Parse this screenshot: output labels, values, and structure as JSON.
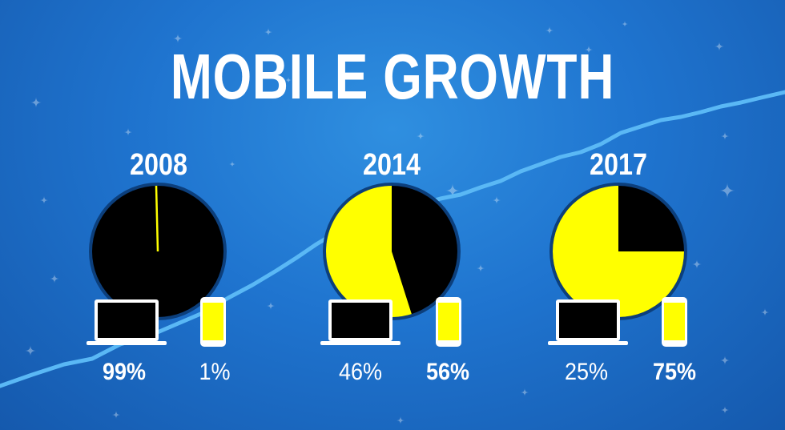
{
  "title": "MOBILE GROWTH",
  "colors": {
    "background": "#1f74cf",
    "trend_line": "#5ab8f5",
    "desktop": "#000000",
    "mobile": "#ffff00",
    "pie_ring": "#0c3f7c"
  },
  "icons": {
    "desktop": "laptop-icon",
    "mobile": "smartphone-icon",
    "decor": "sparkle-icon"
  },
  "chart_data": {
    "type": "pie",
    "title": "MOBILE GROWTH",
    "years": [
      {
        "year": "2008",
        "desktop": 99,
        "mobile": 1,
        "desktop_label": "99%",
        "mobile_label": "1%"
      },
      {
        "year": "2014",
        "desktop": 46,
        "mobile": 56,
        "desktop_label": "46%",
        "mobile_label": "56%"
      },
      {
        "year": "2017",
        "desktop": 25,
        "mobile": 75,
        "desktop_label": "25%",
        "mobile_label": "75%"
      }
    ]
  }
}
